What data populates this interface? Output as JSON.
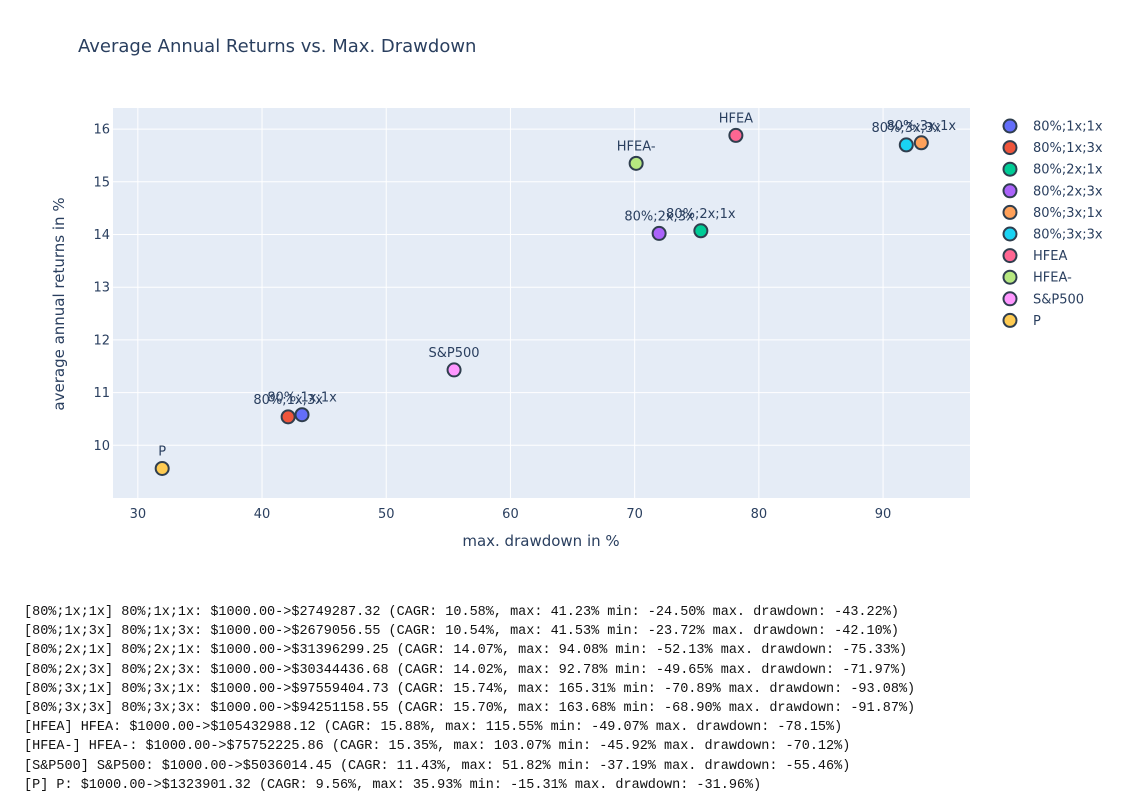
{
  "chart_data": {
    "type": "scatter",
    "title": "Average Annual Returns vs. Max. Drawdown",
    "xlabel": "max. drawdown in %",
    "ylabel": "average annual returns in %",
    "xlim": [
      28,
      97
    ],
    "ylim": [
      9,
      16.4
    ],
    "xticks": [
      30,
      40,
      50,
      60,
      70,
      80,
      90
    ],
    "yticks": [
      10,
      11,
      12,
      13,
      14,
      15,
      16
    ],
    "grid": true,
    "legend_position": "right",
    "series": [
      {
        "name": "80%;1x;1x",
        "label": "80%;1x;1x",
        "x": 43.22,
        "y": 10.58,
        "color": "#636efa"
      },
      {
        "name": "80%;1x;3x",
        "label": "80%;1x;3x",
        "x": 42.1,
        "y": 10.54,
        "color": "#ef553b"
      },
      {
        "name": "80%;2x;1x",
        "label": "80%;2x;1x",
        "x": 75.33,
        "y": 14.07,
        "color": "#00cc96"
      },
      {
        "name": "80%;2x;3x",
        "label": "80%;2x;3x",
        "x": 71.97,
        "y": 14.02,
        "color": "#ab63fa"
      },
      {
        "name": "80%;3x;1x",
        "label": "80%;3x;1x",
        "x": 93.08,
        "y": 15.74,
        "color": "#ffa15a"
      },
      {
        "name": "80%;3x;3x",
        "label": "80%;3x;3x",
        "x": 91.87,
        "y": 15.7,
        "color": "#19d3f3"
      },
      {
        "name": "HFEA",
        "label": "HFEA",
        "x": 78.15,
        "y": 15.88,
        "color": "#ff6692"
      },
      {
        "name": "HFEA-",
        "label": "HFEA-",
        "x": 70.12,
        "y": 15.35,
        "color": "#b6e880"
      },
      {
        "name": "S&P500",
        "label": "S&P500",
        "x": 55.46,
        "y": 11.43,
        "color": "#ff97ff"
      },
      {
        "name": "P",
        "label": "P",
        "x": 31.96,
        "y": 9.56,
        "color": "#fecb52"
      }
    ]
  },
  "output_lines": [
    "[80%;1x;1x] 80%;1x;1x: $1000.00->$2749287.32 (CAGR: 10.58%, max: 41.23% min: -24.50% max. drawdown: -43.22%)",
    "[80%;1x;3x] 80%;1x;3x: $1000.00->$2679056.55 (CAGR: 10.54%, max: 41.53% min: -23.72% max. drawdown: -42.10%)",
    "[80%;2x;1x] 80%;2x;1x: $1000.00->$31396299.25 (CAGR: 14.07%, max: 94.08% min: -52.13% max. drawdown: -75.33%)",
    "[80%;2x;3x] 80%;2x;3x: $1000.00->$30344436.68 (CAGR: 14.02%, max: 92.78% min: -49.65% max. drawdown: -71.97%)",
    "[80%;3x;1x] 80%;3x;1x: $1000.00->$97559404.73 (CAGR: 15.74%, max: 165.31% min: -70.89% max. drawdown: -93.08%)",
    "[80%;3x;3x] 80%;3x;3x: $1000.00->$94251158.55 (CAGR: 15.70%, max: 163.68% min: -68.90% max. drawdown: -91.87%)",
    "[HFEA] HFEA: $1000.00->$105432988.12 (CAGR: 15.88%, max: 115.55% min: -49.07% max. drawdown: -78.15%)",
    "[HFEA-] HFEA-: $1000.00->$75752225.86 (CAGR: 15.35%, max: 103.07% min: -45.92% max. drawdown: -70.12%)",
    "[S&P500] S&P500: $1000.00->$5036014.45 (CAGR: 11.43%, max: 51.82% min: -37.19% max. drawdown: -55.46%)",
    "[P] P: $1000.00->$1323901.32 (CAGR: 9.56%, max: 35.93% min: -15.31% max. drawdown: -31.96%)"
  ]
}
